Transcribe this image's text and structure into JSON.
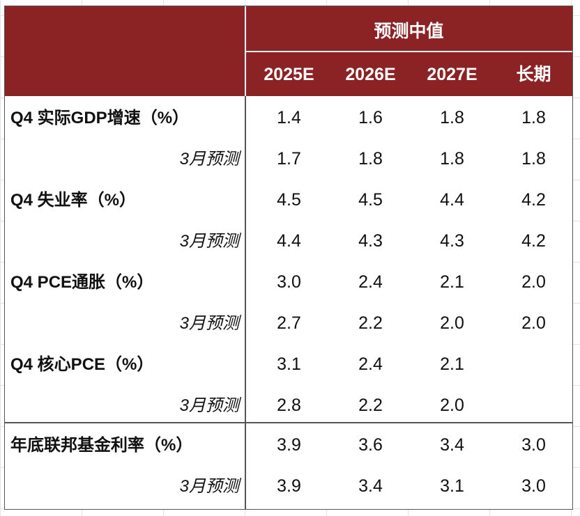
{
  "header": {
    "group_title": "预测中值",
    "columns": [
      "2025E",
      "2026E",
      "2027E",
      "长期"
    ]
  },
  "rows": [
    {
      "label": "Q4 实际GDP增速（%）",
      "type": "main",
      "values": [
        "1.4",
        "1.6",
        "1.8",
        "1.8"
      ]
    },
    {
      "label": "3月预测",
      "type": "sub",
      "values": [
        "1.7",
        "1.8",
        "1.8",
        "1.8"
      ]
    },
    {
      "label": "Q4 失业率（%）",
      "type": "main",
      "values": [
        "4.5",
        "4.5",
        "4.4",
        "4.2"
      ]
    },
    {
      "label": "3月预测",
      "type": "sub",
      "values": [
        "4.4",
        "4.3",
        "4.3",
        "4.2"
      ]
    },
    {
      "label": "Q4 PCE通胀（%）",
      "type": "main",
      "values": [
        "3.0",
        "2.4",
        "2.1",
        "2.0"
      ]
    },
    {
      "label": "3月预测",
      "type": "sub",
      "values": [
        "2.7",
        "2.2",
        "2.0",
        "2.0"
      ]
    },
    {
      "label": "Q4 核心PCE（%）",
      "type": "main",
      "values": [
        "3.1",
        "2.4",
        "2.1",
        ""
      ]
    },
    {
      "label": "3月预测",
      "type": "sub",
      "values": [
        "2.8",
        "2.2",
        "2.0",
        ""
      ]
    },
    {
      "label": "年底联邦基金利率（%）",
      "type": "main",
      "values": [
        "3.9",
        "3.6",
        "3.4",
        "3.0"
      ]
    },
    {
      "label": "3月预测",
      "type": "sub",
      "values": [
        "3.9",
        "3.4",
        "3.1",
        "3.0"
      ]
    }
  ],
  "colors": {
    "header_bg": "#8b2324",
    "header_text": "#ffffff",
    "text": "#111111"
  }
}
